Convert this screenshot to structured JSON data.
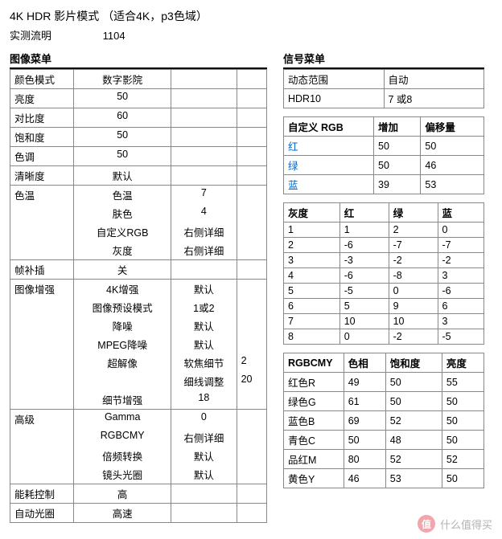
{
  "title": "4K HDR 影片模式 （适合4K，p3色域）",
  "lumens": {
    "label": "实测流明",
    "value": "1104"
  },
  "imageMenuHeader": "图像菜单",
  "signalMenuHeader": "信号菜单",
  "leftTable": {
    "r1": {
      "a": "颜色模式",
      "b": "数字影院"
    },
    "r2": {
      "a": "亮度",
      "b": "50"
    },
    "r3": {
      "a": "对比度",
      "b": "60"
    },
    "r4": {
      "a": "饱和度",
      "b": "50"
    },
    "r5": {
      "a": "色调",
      "b": "50"
    },
    "r6": {
      "a": "清晰度",
      "b": "默认"
    },
    "r7": {
      "a": "色温",
      "b": "色温",
      "c": "7"
    },
    "r8": {
      "b": "肤色",
      "c": "4"
    },
    "r9": {
      "b": "自定义RGB",
      "c": "右侧详细"
    },
    "r10": {
      "b": "灰度",
      "c": "右侧详细"
    },
    "r11": {
      "a": "帧补插",
      "b": "关"
    },
    "r12": {
      "a": "图像增强",
      "b": "4K增强",
      "c": "默认"
    },
    "r13": {
      "b": "图像预设模式",
      "c": "1或2"
    },
    "r14": {
      "b": "降噪",
      "c": "默认"
    },
    "r15": {
      "b": "MPEG降噪",
      "c": "默认"
    },
    "r16": {
      "b": "超解像",
      "c": "软焦细节",
      "d": "2"
    },
    "r17": {
      "c": "细线调整",
      "d": "20"
    },
    "r18": {
      "b": "细节增强",
      "c": "18"
    },
    "r19": {
      "a": "高级",
      "b": "Gamma",
      "c": "0"
    },
    "r20": {
      "b": "RGBCMY",
      "c": "右侧详细"
    },
    "r21": {
      "b": "倍频转换",
      "c": "默认"
    },
    "r22": {
      "b": "镜头光圈",
      "c": "默认"
    },
    "r23": {
      "a": "能耗控制",
      "b": "高"
    },
    "r24": {
      "a": "自动光圈",
      "b": "高速"
    }
  },
  "signal": {
    "r1": {
      "a": "动态范围",
      "b": "自动"
    },
    "r2": {
      "a": "HDR10",
      "b": "7 或8"
    }
  },
  "rgb": {
    "h1": "自定义 RGB",
    "h2": "增加",
    "h3": "偏移量",
    "r1": {
      "a": "红",
      "b": "50",
      "c": "50"
    },
    "r2": {
      "a": "绿",
      "b": "50",
      "c": "46"
    },
    "r3": {
      "a": "蓝",
      "b": "39",
      "c": "53"
    }
  },
  "gray": {
    "h1": "灰度",
    "h2": "红",
    "h3": "绿",
    "h4": "蓝",
    "rows": [
      {
        "a": "1",
        "b": "1",
        "c": "2",
        "d": "0"
      },
      {
        "a": "2",
        "b": "-6",
        "c": "-7",
        "d": "-7"
      },
      {
        "a": "3",
        "b": "-3",
        "c": "-2",
        "d": "-2"
      },
      {
        "a": "4",
        "b": "-6",
        "c": "-8",
        "d": "3"
      },
      {
        "a": "5",
        "b": "-5",
        "c": "0",
        "d": "-6"
      },
      {
        "a": "6",
        "b": "5",
        "c": "9",
        "d": "6"
      },
      {
        "a": "7",
        "b": "10",
        "c": "10",
        "d": "3"
      },
      {
        "a": "8",
        "b": "0",
        "c": "-2",
        "d": "-5"
      }
    ]
  },
  "rgbcmy": {
    "h1": "RGBCMY",
    "h2": "色相",
    "h3": "饱和度",
    "h4": "亮度",
    "rows": [
      {
        "a": "红色R",
        "b": "49",
        "c": "50",
        "d": "55"
      },
      {
        "a": "绿色G",
        "b": "61",
        "c": "50",
        "d": "50"
      },
      {
        "a": "蓝色B",
        "b": "69",
        "c": "52",
        "d": "50"
      },
      {
        "a": "青色C",
        "b": "50",
        "c": "48",
        "d": "50"
      },
      {
        "a": "品红M",
        "b": "80",
        "c": "52",
        "d": "52"
      },
      {
        "a": "黄色Y",
        "b": "46",
        "c": "53",
        "d": "50"
      }
    ]
  },
  "watermark": {
    "icon": "值",
    "text": "什么值得买"
  }
}
